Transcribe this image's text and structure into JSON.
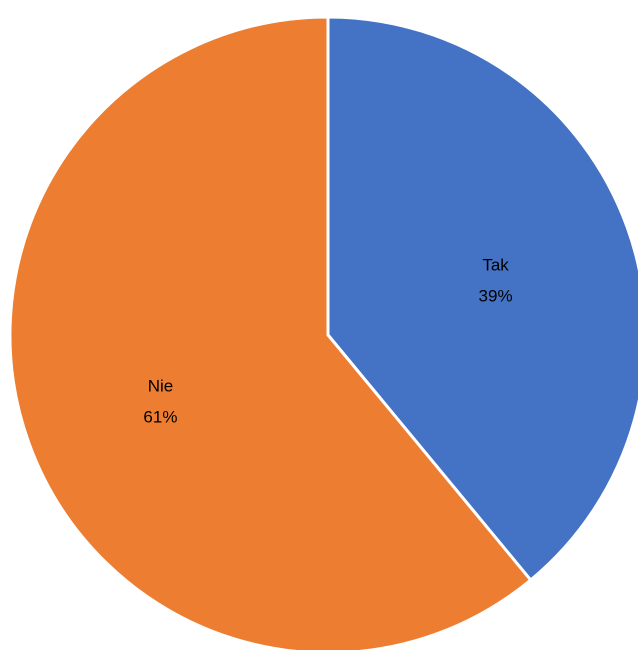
{
  "chart_data": {
    "type": "pie",
    "title": "",
    "categories": [
      "Tak",
      "Nie"
    ],
    "values": [
      39,
      61
    ],
    "value_labels": [
      "39%",
      "61%"
    ],
    "colors": [
      "#4472C4",
      "#ED7D31"
    ],
    "start_angle_deg": 0,
    "direction": "clockwise",
    "legend": "none",
    "data_labels": "inside"
  }
}
